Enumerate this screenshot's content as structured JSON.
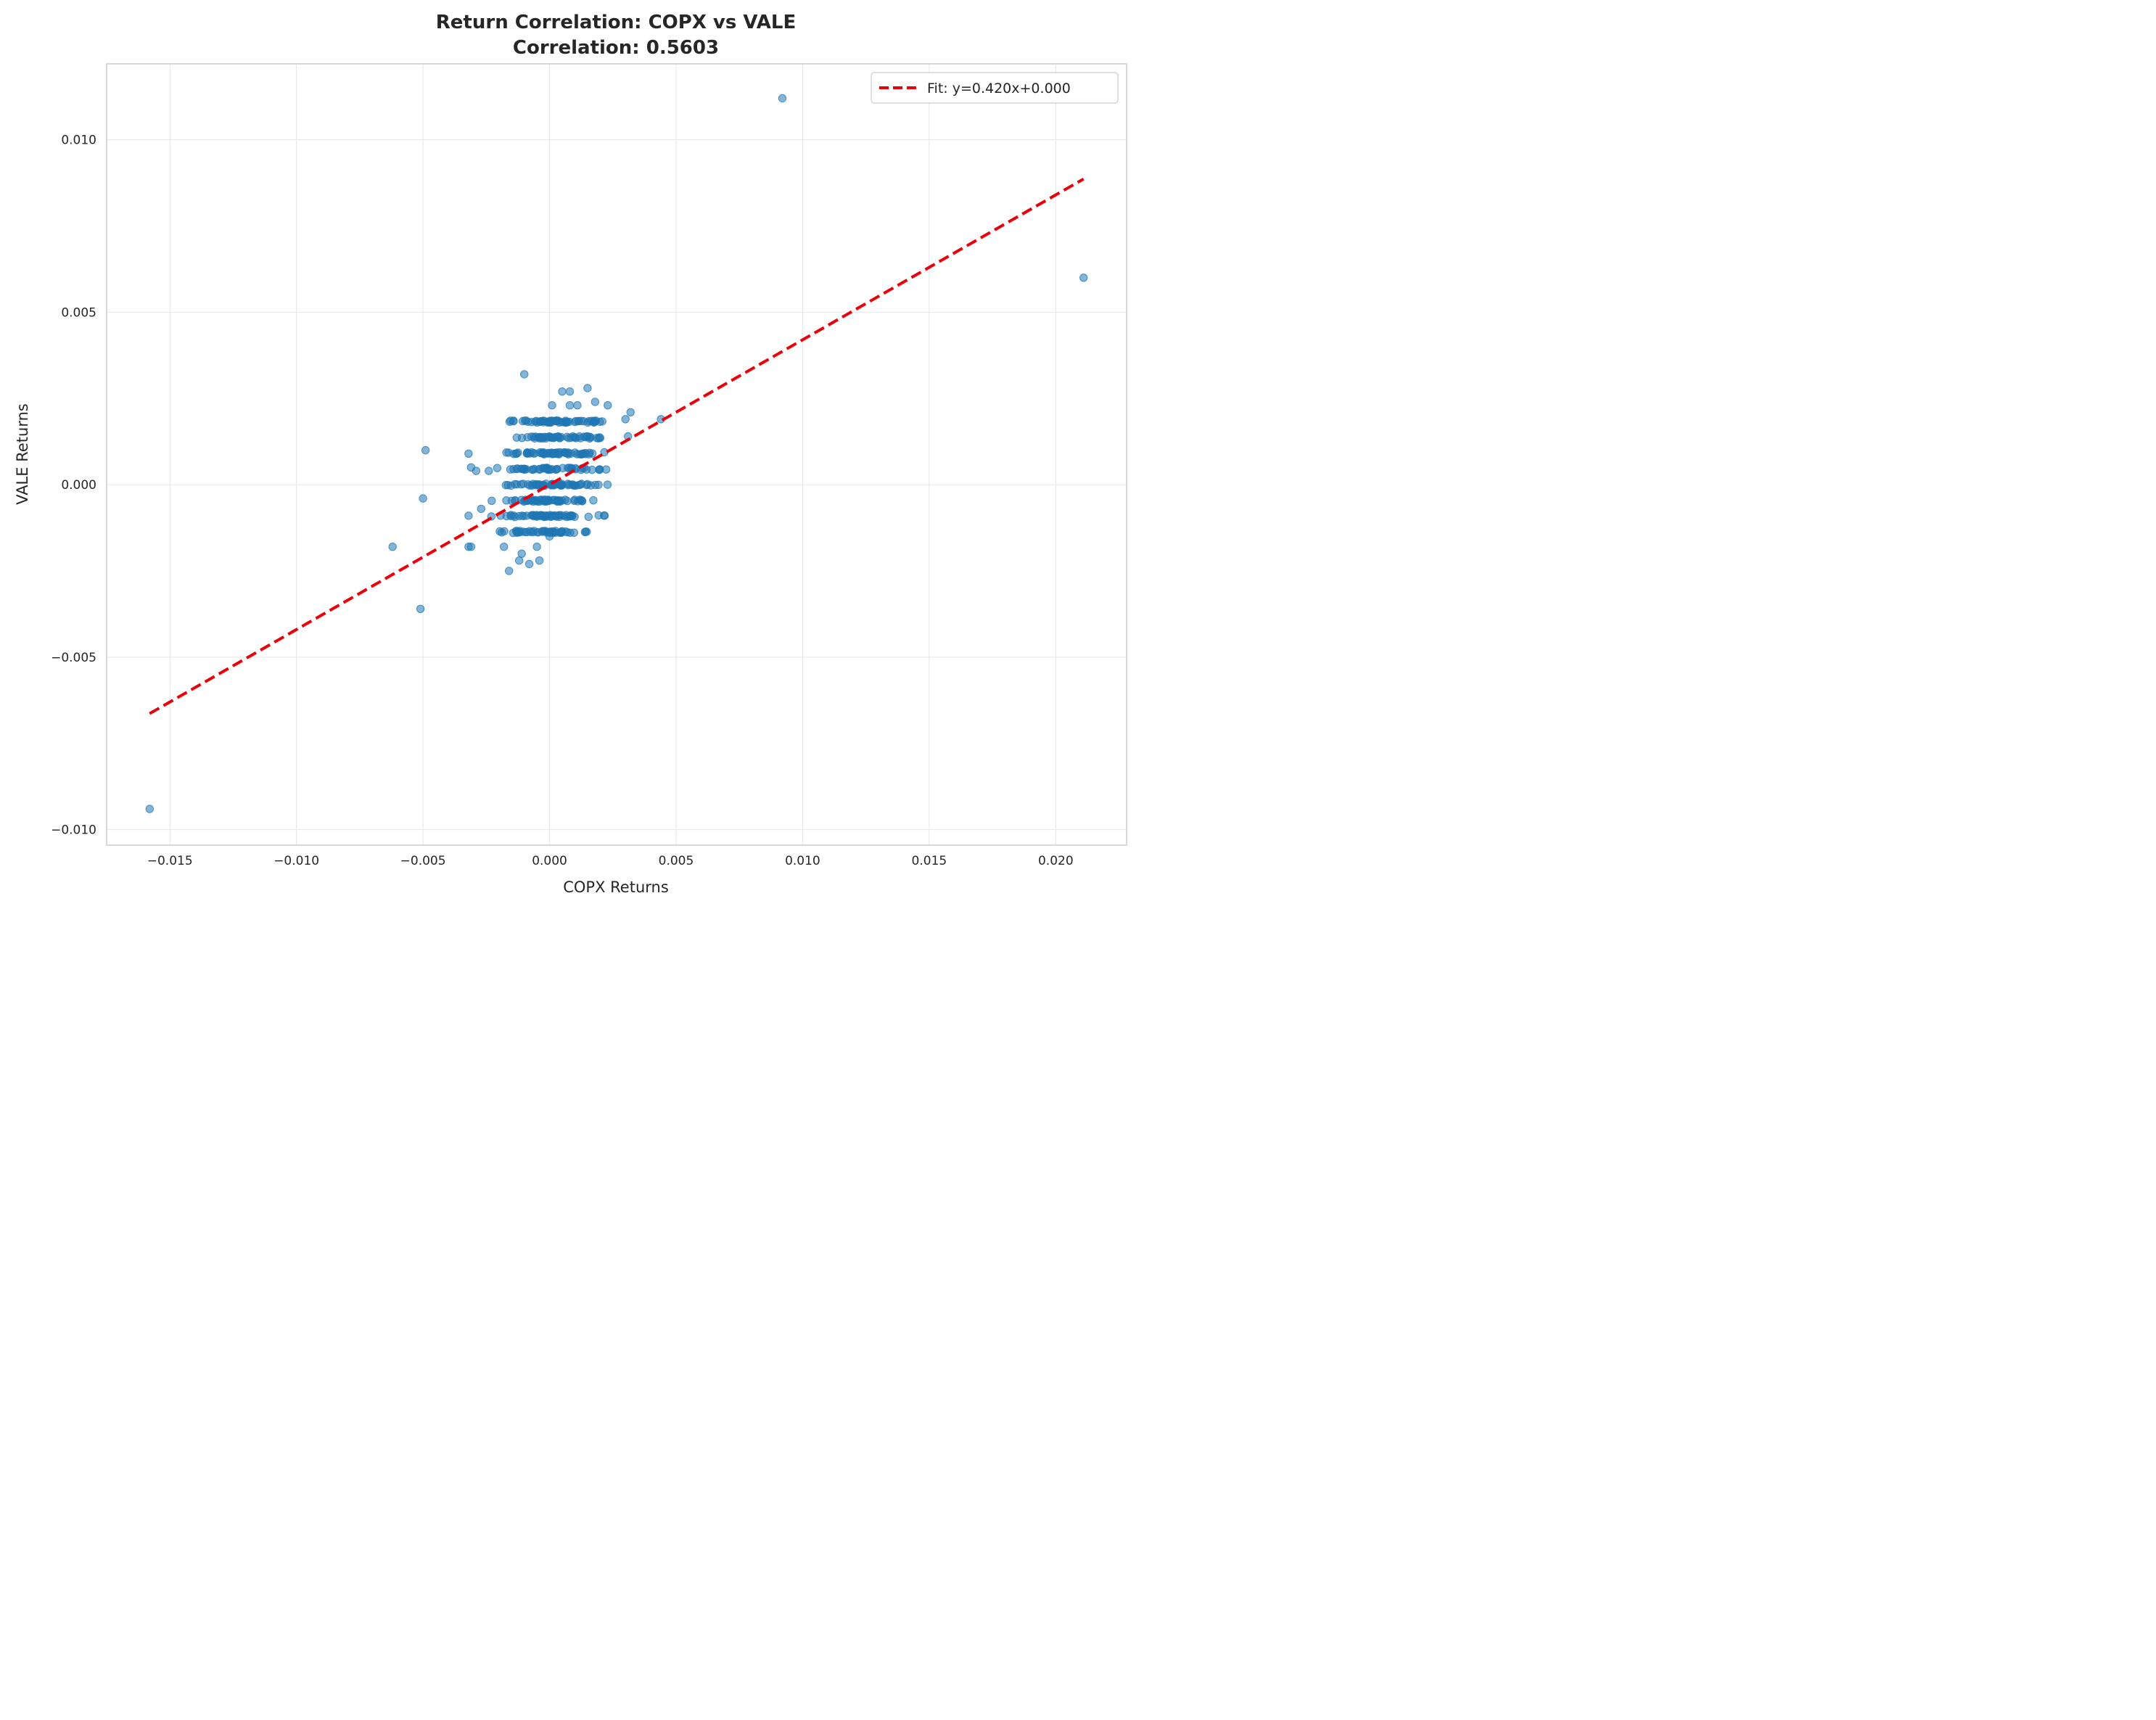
{
  "chart_data": {
    "type": "scatter",
    "title": "Return Correlation: COPX vs VALE",
    "subtitle": "Correlation: 0.5603",
    "xlabel": "COPX Returns",
    "ylabel": "VALE Returns",
    "xlim": [
      -0.0175,
      0.0228
    ],
    "ylim": [
      -0.01045,
      0.0122
    ],
    "x_ticks": [
      -0.015,
      -0.01,
      -0.005,
      0.0,
      0.005,
      0.01,
      0.015,
      0.02
    ],
    "x_tick_labels": [
      "−0.015",
      "−0.010",
      "−0.005",
      "0.000",
      "0.005",
      "0.010",
      "0.015",
      "0.020"
    ],
    "y_ticks": [
      -0.01,
      -0.005,
      0.0,
      0.005,
      0.01
    ],
    "y_tick_labels": [
      "−0.010",
      "−0.005",
      "0.000",
      "0.005",
      "0.010"
    ],
    "grid": true,
    "legend_position": "top-right",
    "colors": {
      "points": "#1f77b4",
      "fit": "#e8000b",
      "grid": "#e6e6e6",
      "spine": "#cccccc"
    },
    "series": [
      {
        "type": "scatter",
        "points": [
          [
            -0.0158,
            -0.0094
          ],
          [
            0.0092,
            0.0112
          ],
          [
            0.0211,
            0.006
          ],
          [
            -0.0062,
            -0.0018
          ],
          [
            -0.0051,
            -0.0036
          ],
          [
            -0.0049,
            0.001
          ],
          [
            -0.005,
            -0.0004
          ],
          [
            -0.0032,
            0.0009
          ],
          [
            -0.0031,
            0.0005
          ],
          [
            -0.0029,
            0.0004
          ],
          [
            -0.0032,
            -0.0018
          ],
          [
            -0.0031,
            -0.0018
          ],
          [
            -0.0032,
            -0.0009
          ],
          [
            -0.0027,
            -0.0007
          ],
          [
            -0.0024,
            0.0004
          ],
          [
            0.0044,
            0.0019
          ],
          [
            0.0032,
            0.0021
          ],
          [
            0.003,
            0.0019
          ],
          [
            0.0031,
            0.0014
          ],
          [
            -0.001,
            0.0032
          ],
          [
            0.0005,
            0.0027
          ],
          [
            0.0008,
            0.0027
          ],
          [
            0.0015,
            0.0028
          ],
          [
            0.0018,
            0.0024
          ],
          [
            0.0023,
            0.0023
          ],
          [
            0.0001,
            0.0023
          ],
          [
            0.0008,
            0.0023
          ],
          [
            0.0011,
            0.0023
          ],
          [
            -0.0016,
            -0.0025
          ],
          [
            -0.0012,
            -0.0022
          ],
          [
            -0.0008,
            -0.0023
          ],
          [
            -0.0004,
            -0.0022
          ],
          [
            -0.0011,
            -0.002
          ],
          [
            -0.0018,
            -0.0018
          ],
          [
            -0.0005,
            -0.0018
          ],
          [
            0.0,
            -0.0015
          ]
        ]
      },
      {
        "type": "scatter",
        "name": "cluster",
        "cluster": {
          "x_center": 0.0,
          "x_spread": 0.0009,
          "x_min": -0.0023,
          "x_max": 0.0024,
          "y_levels": [
            -0.00137,
            -0.00091,
            -0.00046,
            0.0,
            0.00046,
            0.00091,
            0.00137,
            0.00183
          ],
          "count": 420
        }
      },
      {
        "type": "line",
        "name": "Fit: y=0.420x+0.000",
        "style": "dashed",
        "slope": 0.42,
        "intercept": 0.0,
        "x_range": [
          -0.0158,
          0.0211
        ]
      }
    ]
  }
}
